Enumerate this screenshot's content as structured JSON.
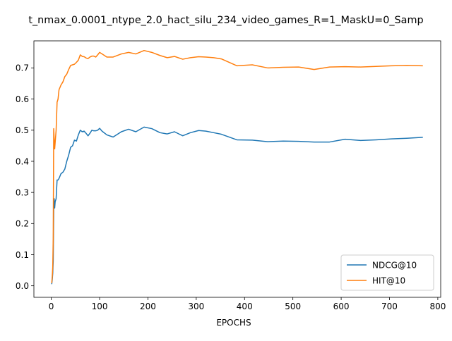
{
  "chart_data": {
    "type": "line",
    "title": "t_nmax_0.0001_ntype_2.0_hact_silu_234_video_games_R=1_MaskU=0_Samp",
    "xlabel": "EPOCHS",
    "ylabel": "",
    "xlim": [
      -36,
      806
    ],
    "ylim": [
      -0.037,
      0.787
    ],
    "xticks": [
      0,
      100,
      200,
      300,
      400,
      500,
      600,
      700,
      800
    ],
    "yticks": [
      0.0,
      0.1,
      0.2,
      0.3,
      0.4,
      0.5,
      0.6,
      0.7
    ],
    "xtick_labels": [
      "0",
      "100",
      "200",
      "300",
      "400",
      "500",
      "600",
      "700",
      "800"
    ],
    "ytick_labels": [
      "0.0",
      "0.1",
      "0.2",
      "0.3",
      "0.4",
      "0.5",
      "0.6",
      "0.7"
    ],
    "grid": false,
    "legend_position": "lower-right",
    "series": [
      {
        "name": "NDCG@10",
        "color": "#1f77b4",
        "x": [
          1,
          2,
          3,
          4,
          5,
          6,
          7,
          8,
          10,
          12,
          14,
          16,
          20,
          24,
          28,
          32,
          36,
          40,
          44,
          48,
          52,
          56,
          60,
          64,
          68,
          72,
          76,
          80,
          84,
          88,
          92,
          96,
          100,
          105,
          115,
          128,
          145,
          160,
          175,
          192,
          208,
          225,
          240,
          255,
          272,
          288,
          305,
          320,
          336,
          352,
          384,
          416,
          448,
          480,
          512,
          544,
          576,
          608,
          640,
          672,
          704,
          736,
          768
        ],
        "y": [
          0.007,
          0.02,
          0.04,
          0.08,
          0.25,
          0.28,
          0.25,
          0.27,
          0.28,
          0.34,
          0.34,
          0.345,
          0.36,
          0.365,
          0.375,
          0.4,
          0.42,
          0.445,
          0.45,
          0.468,
          0.465,
          0.485,
          0.5,
          0.495,
          0.497,
          0.49,
          0.482,
          0.49,
          0.5,
          0.498,
          0.498,
          0.5,
          0.506,
          0.497,
          0.485,
          0.478,
          0.495,
          0.503,
          0.495,
          0.51,
          0.505,
          0.492,
          0.488,
          0.495,
          0.482,
          0.492,
          0.499,
          0.497,
          0.492,
          0.487,
          0.469,
          0.468,
          0.463,
          0.465,
          0.464,
          0.462,
          0.462,
          0.471,
          0.467,
          0.469,
          0.472,
          0.474,
          0.477
        ]
      },
      {
        "name": "HIT@10",
        "color": "#ff7f0e",
        "x": [
          1,
          2,
          3,
          4,
          5,
          6,
          7,
          8,
          10,
          12,
          14,
          16,
          20,
          24,
          28,
          32,
          36,
          40,
          44,
          48,
          52,
          56,
          60,
          64,
          68,
          72,
          76,
          80,
          84,
          88,
          92,
          96,
          100,
          105,
          115,
          128,
          145,
          160,
          175,
          192,
          208,
          225,
          240,
          255,
          272,
          288,
          305,
          320,
          336,
          352,
          384,
          416,
          448,
          480,
          512,
          544,
          576,
          608,
          640,
          672,
          704,
          736,
          768
        ],
        "y": [
          0.01,
          0.03,
          0.06,
          0.15,
          0.505,
          0.47,
          0.44,
          0.46,
          0.5,
          0.59,
          0.6,
          0.63,
          0.645,
          0.655,
          0.672,
          0.68,
          0.695,
          0.708,
          0.71,
          0.712,
          0.718,
          0.725,
          0.742,
          0.737,
          0.736,
          0.732,
          0.73,
          0.735,
          0.738,
          0.738,
          0.735,
          0.742,
          0.75,
          0.745,
          0.735,
          0.735,
          0.745,
          0.75,
          0.745,
          0.756,
          0.75,
          0.74,
          0.733,
          0.737,
          0.728,
          0.733,
          0.736,
          0.735,
          0.733,
          0.729,
          0.707,
          0.71,
          0.7,
          0.702,
          0.703,
          0.695,
          0.703,
          0.704,
          0.703,
          0.705,
          0.707,
          0.708,
          0.707
        ]
      }
    ]
  }
}
